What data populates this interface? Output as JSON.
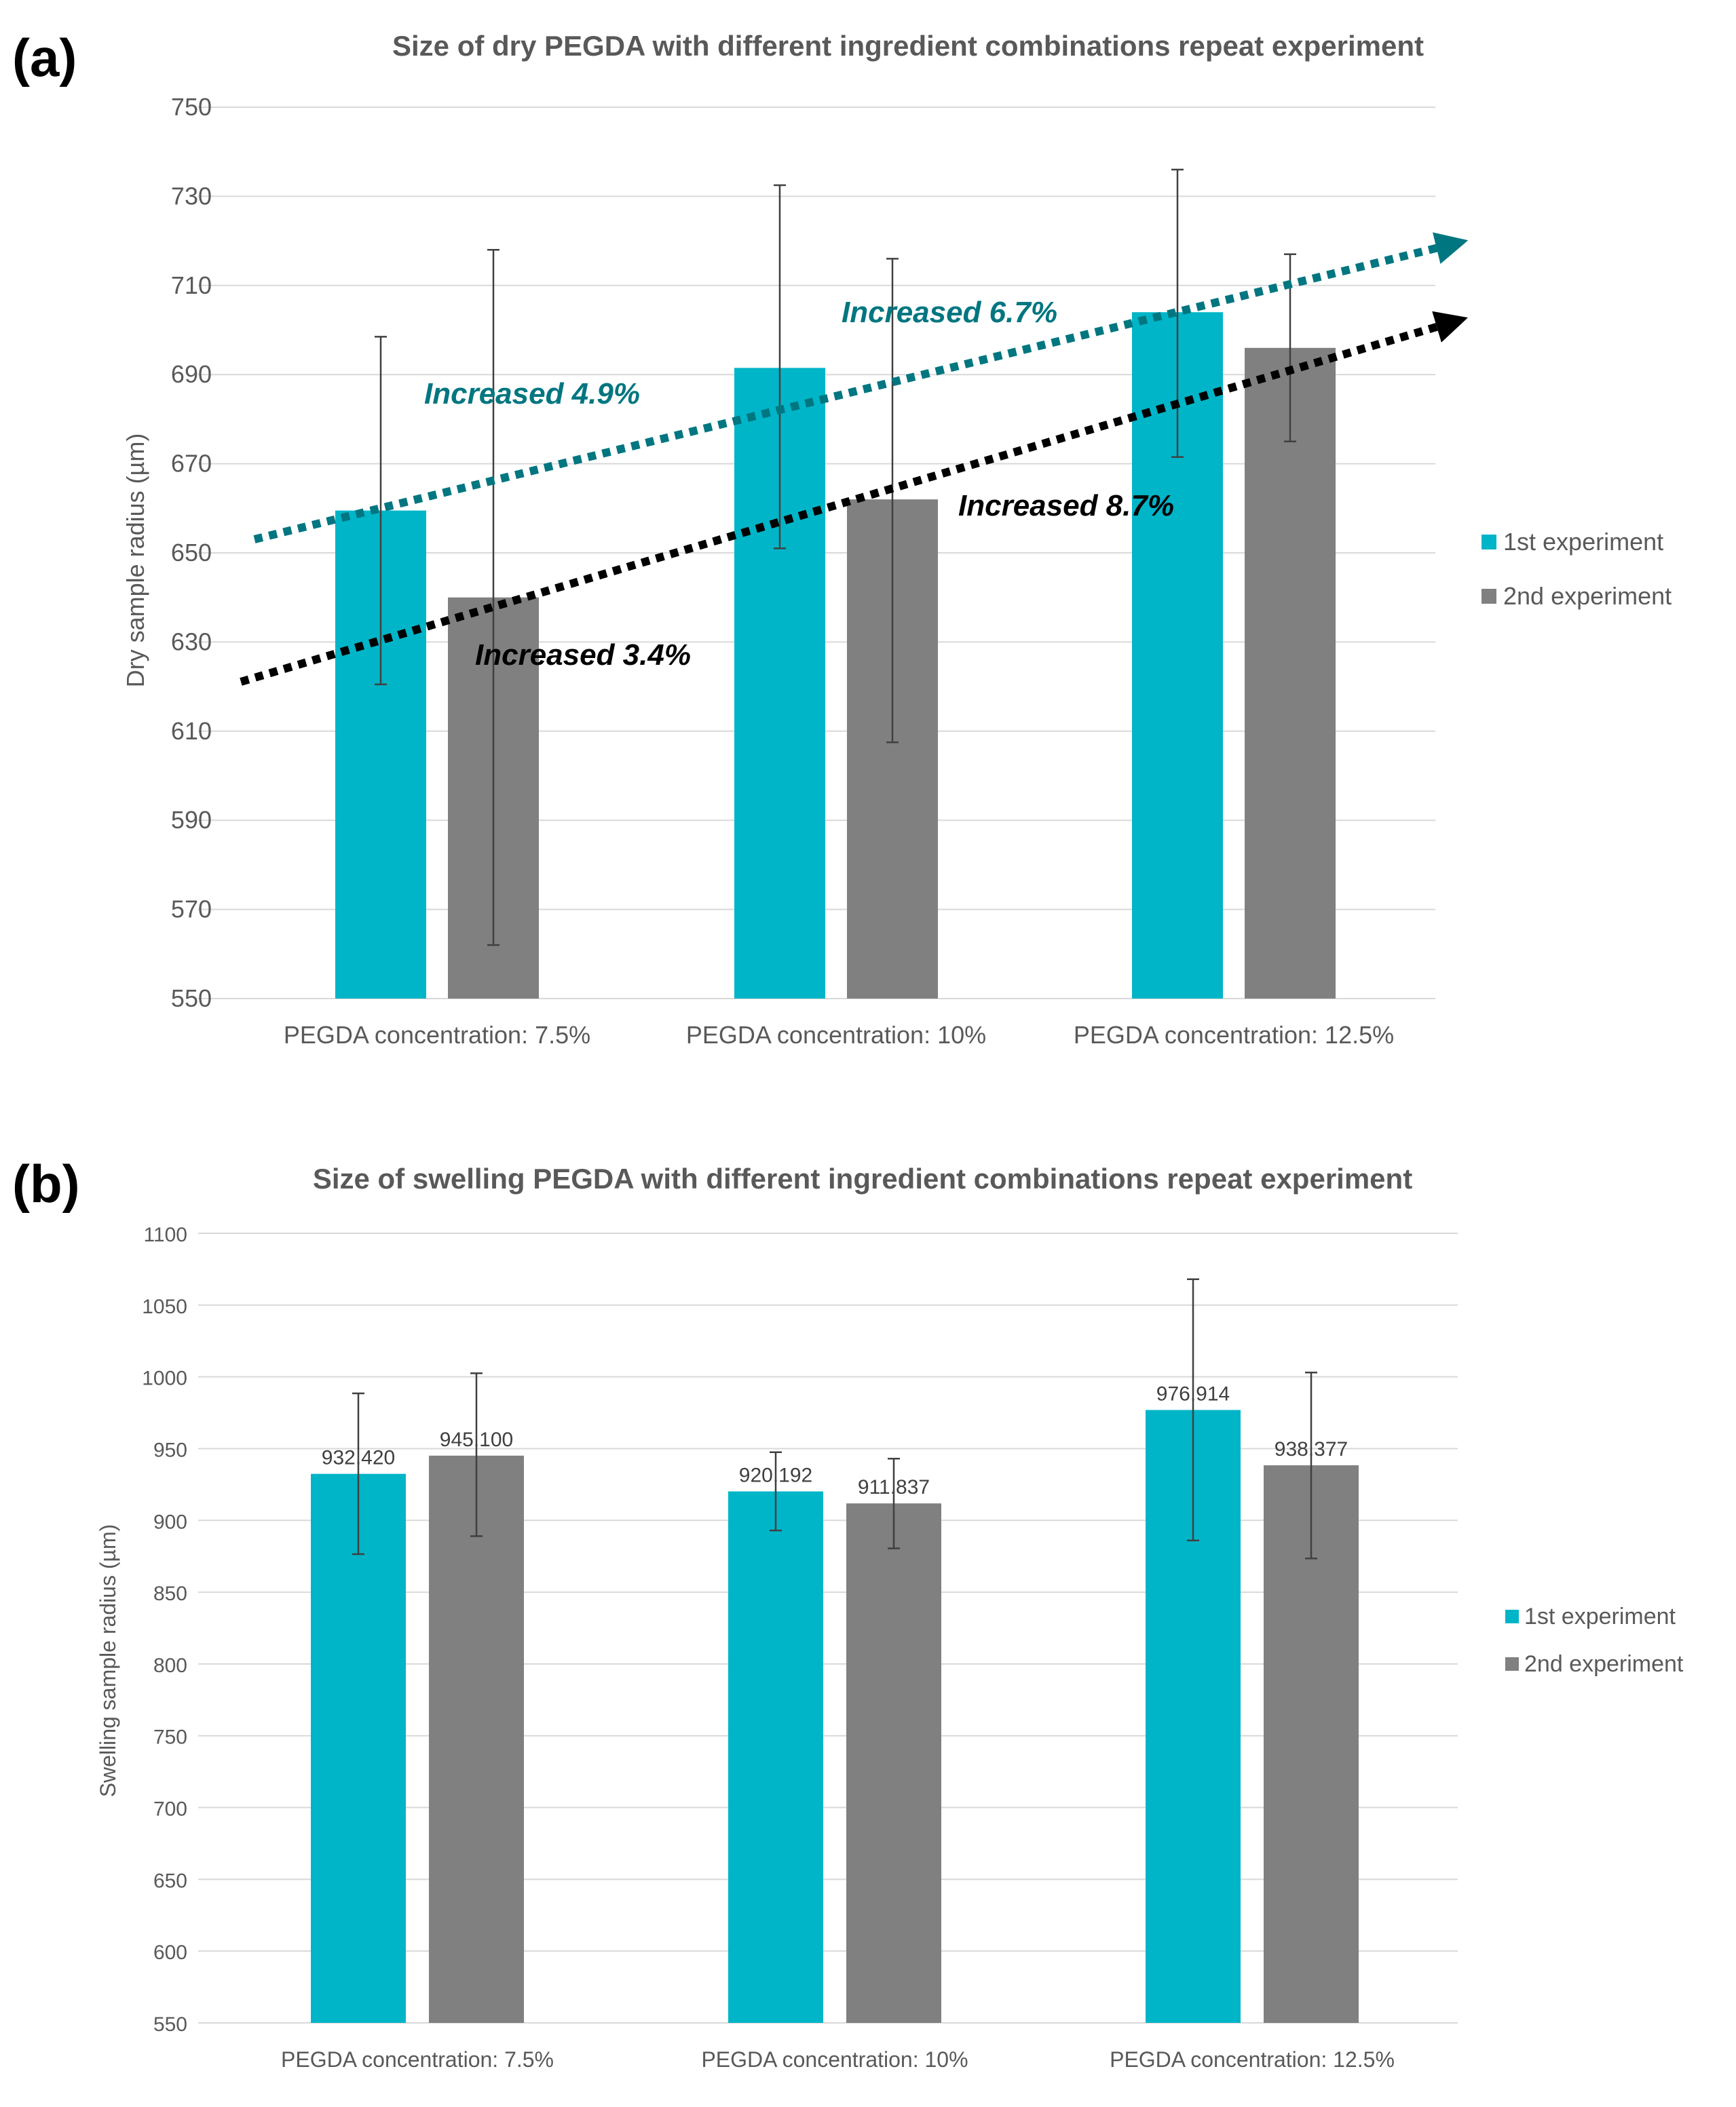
{
  "panels": {
    "a": {
      "label": "(a)"
    },
    "b": {
      "label": "(b)"
    }
  },
  "annotations": {
    "teal_label_1": "Increased 4.9%",
    "teal_label_2": "Increased 6.7%",
    "black_label_1": "Increased 3.4%",
    "black_label_2": "Increased 8.7%",
    "teal_color": "#007680",
    "black_color": "#000000"
  },
  "chart_data": [
    {
      "type": "bar",
      "title": "Size of dry PEGDA with different ingredient combinations repeat experiment",
      "xlabel": "",
      "ylabel": "Dry sample radius (µm)",
      "ylim": [
        550,
        750
      ],
      "yticks": [
        550,
        570,
        590,
        610,
        630,
        650,
        670,
        690,
        710,
        730,
        750
      ],
      "grid": true,
      "legend_position": "right",
      "categories": [
        "PEGDA concentration: 7.5%",
        "PEGDA concentration: 10%",
        "PEGDA concentration: 12.5%"
      ],
      "series": [
        {
          "name": "1st experiment",
          "color": "#00b5c8",
          "values": [
            659.5,
            691.5,
            704
          ],
          "error_low": [
            620.5,
            651,
            671.5
          ],
          "error_high": [
            698.5,
            732.5,
            736
          ]
        },
        {
          "name": "2nd experiment",
          "color": "#808080",
          "values": [
            640,
            662,
            696
          ],
          "error_low": [
            562,
            607.5,
            675
          ],
          "error_high": [
            718,
            716,
            717
          ]
        }
      ]
    },
    {
      "type": "bar",
      "title": "Size of swelling PEGDA with different ingredient combinations repeat experiment",
      "xlabel": "",
      "ylabel": "Swelling sample radius (µm)",
      "ylim": [
        550,
        1100
      ],
      "yticks": [
        550,
        600,
        650,
        700,
        750,
        800,
        850,
        900,
        950,
        1000,
        1050,
        1100
      ],
      "grid": true,
      "legend_position": "right",
      "categories": [
        "PEGDA concentration: 7.5%",
        "PEGDA concentration: 10%",
        "PEGDA concentration: 12.5%"
      ],
      "series": [
        {
          "name": "1st experiment",
          "color": "#00b5c8",
          "values": [
            932.42,
            920.192,
            976.914
          ],
          "labels": [
            "932.420",
            "920.192",
            "976.914"
          ],
          "error_low": [
            876.5,
            893,
            886
          ],
          "error_high": [
            988.5,
            947.5,
            1068
          ]
        },
        {
          "name": "2nd experiment",
          "color": "#808080",
          "values": [
            945.1,
            911.837,
            938.377
          ],
          "labels": [
            "945.100",
            "911.837",
            "938.377"
          ],
          "error_low": [
            889,
            880.5,
            873.5
          ],
          "error_high": [
            1002.5,
            943,
            1003
          ]
        }
      ]
    }
  ]
}
